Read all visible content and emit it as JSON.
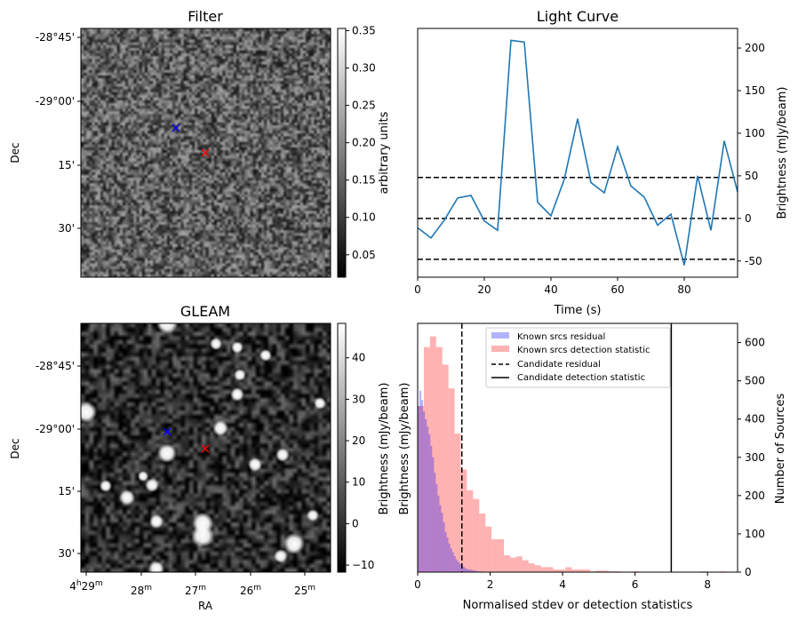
{
  "chart_data": [
    {
      "type": "heatmap",
      "title": "Filter",
      "ylabel": "Dec",
      "yticks": [
        "-28°45'",
        "-29°00'",
        "15'",
        "30'"
      ],
      "colorbar": {
        "label": "arbitrary units",
        "ticks": [
          "0.05",
          "0.10",
          "0.15",
          "0.20",
          "0.25",
          "0.30",
          "0.35"
        ],
        "range": [
          0.02,
          0.353
        ]
      },
      "markers": [
        {
          "name": "known source",
          "color": "#0000ff"
        },
        {
          "name": "candidate",
          "color": "#ff0000"
        }
      ]
    },
    {
      "type": "line",
      "title": "Light Curve",
      "xlabel": "Time (s)",
      "ylabel": "Brightness (mJy/beam)",
      "xlim": [
        0,
        96
      ],
      "ylim": [
        -69,
        223
      ],
      "xticks": [
        "0",
        "20",
        "40",
        "60",
        "80"
      ],
      "yticks": [
        "-50",
        "0",
        "50",
        "100",
        "150",
        "200"
      ],
      "color": "#1f77b4",
      "x": [
        0,
        4,
        8,
        12,
        16,
        20,
        24,
        28,
        32,
        36,
        40,
        44,
        48,
        52,
        56,
        60,
        64,
        68,
        72,
        76,
        80,
        84,
        88,
        92,
        96
      ],
      "y": [
        -11,
        -23,
        -2,
        24,
        27,
        -3,
        -14,
        209,
        207,
        19,
        3,
        46,
        117,
        42,
        30,
        84,
        38,
        25,
        -8,
        5,
        -55,
        50,
        -14,
        91,
        31
      ],
      "hlines": [
        48,
        0,
        -48
      ]
    },
    {
      "type": "heatmap",
      "title": "GLEAM",
      "xlabel": "RA",
      "ylabel": "Dec",
      "xticks": [
        "4h29m",
        "28m",
        "27m",
        "26m",
        "25m"
      ],
      "xtick_parts": [
        [
          "4",
          "h",
          "29",
          "m"
        ],
        [
          "",
          "",
          "28",
          "m"
        ],
        [
          "",
          "",
          "27",
          "m"
        ],
        [
          "",
          "",
          "26",
          "m"
        ],
        [
          "",
          "",
          "25",
          "m"
        ]
      ],
      "yticks": [
        "-28°45'",
        "-29°00'",
        "15'",
        "30'"
      ],
      "colorbar": {
        "label": "Brightness (mJy/beam)",
        "ticks": [
          "−10",
          "0",
          "10",
          "20",
          "30",
          "40"
        ],
        "range": [
          -11.7,
          48.3
        ]
      },
      "markers": [
        {
          "name": "known source",
          "color": "#0000ff"
        },
        {
          "name": "candidate",
          "color": "#ff0000"
        }
      ]
    },
    {
      "type": "bar",
      "xlabel": "Normalised stdev or detection statistics",
      "ylabel": "Brightness (mJy/beam)",
      "ylabel_right": "Number of Sources",
      "xlim": [
        0,
        8.83
      ],
      "ylim": [
        0,
        650
      ],
      "xticks": [
        "0",
        "2",
        "4",
        "6",
        "8"
      ],
      "yticks": [
        "0",
        "100",
        "200",
        "300",
        "400",
        "500",
        "600"
      ],
      "series": [
        {
          "name": "Known srcs residual",
          "color": "#0000ff",
          "alpha": 0.3,
          "bin_width": 0.05,
          "values": [
            434,
            474,
            450,
            420,
            400,
            380,
            360,
            330,
            300,
            260,
            230,
            200,
            175,
            155,
            130,
            105,
            90,
            75,
            62,
            52,
            42,
            33,
            27,
            22,
            18,
            14,
            10,
            8,
            7,
            6,
            5,
            4,
            3,
            2,
            2,
            1
          ]
        },
        {
          "name": "Known srcs detection statistic",
          "color": "#ff0000",
          "alpha": 0.3,
          "bin_width": 0.17,
          "values": [
            434,
            588,
            616,
            588,
            542,
            480,
            362,
            268,
            214,
            191,
            153,
            119,
            86,
            86,
            44,
            38,
            41,
            31,
            23,
            18,
            13,
            13,
            7,
            7,
            13,
            7,
            7,
            7,
            2,
            4,
            4,
            2,
            2,
            0,
            0,
            2,
            1,
            0,
            0,
            0,
            0,
            0,
            0,
            0,
            0,
            0,
            2,
            0,
            0,
            2,
            0
          ]
        }
      ],
      "vlines": [
        {
          "name": "Candidate residual",
          "x": 1.22,
          "style": "dashed"
        },
        {
          "name": "Candidate detection statistic",
          "x": 7.0,
          "style": "solid"
        }
      ]
    }
  ]
}
